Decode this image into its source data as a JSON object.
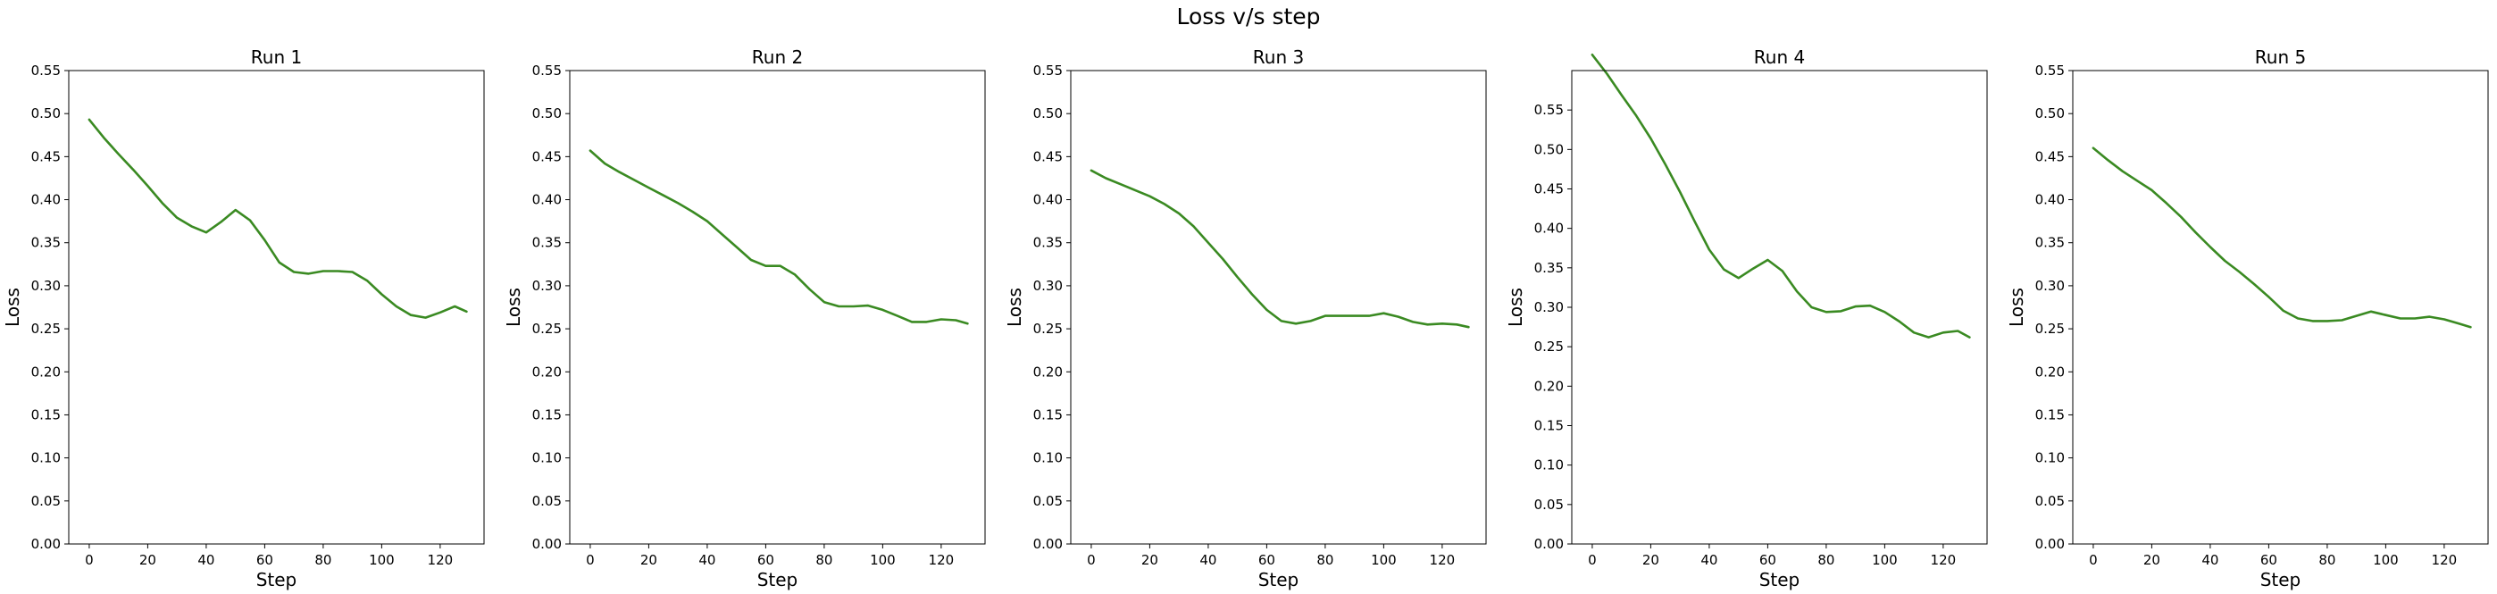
{
  "figure": {
    "title": "Loss v/s step",
    "line_color": "#3a8a22"
  },
  "chart_data": [
    {
      "type": "line",
      "title": "Run 1",
      "xlabel": "Step",
      "ylabel": "Loss",
      "xlim": [
        -7,
        135
      ],
      "ylim": [
        0.0,
        0.55
      ],
      "xticks": [
        0,
        20,
        40,
        60,
        80,
        100,
        120
      ],
      "yticks": [
        0.0,
        0.05,
        0.1,
        0.15,
        0.2,
        0.25,
        0.3,
        0.35,
        0.4,
        0.45,
        0.5,
        0.55
      ],
      "grid": false,
      "series": [
        {
          "x": [
            0,
            5,
            10,
            15,
            20,
            25,
            30,
            35,
            40,
            45,
            50,
            55,
            60,
            65,
            70,
            75,
            80,
            85,
            90,
            95,
            100,
            105,
            110,
            115,
            120,
            125,
            129
          ],
          "y": [
            0.493,
            0.472,
            0.453,
            0.435,
            0.416,
            0.396,
            0.379,
            0.369,
            0.362,
            0.374,
            0.388,
            0.376,
            0.353,
            0.327,
            0.316,
            0.314,
            0.317,
            0.317,
            0.316,
            0.306,
            0.29,
            0.276,
            0.266,
            0.263,
            0.269,
            0.276,
            0.27
          ]
        }
      ]
    },
    {
      "type": "line",
      "title": "Run 2",
      "xlabel": "Step",
      "ylabel": "Loss",
      "xlim": [
        -7,
        135
      ],
      "ylim": [
        0.0,
        0.55
      ],
      "xticks": [
        0,
        20,
        40,
        60,
        80,
        100,
        120
      ],
      "yticks": [
        0.0,
        0.05,
        0.1,
        0.15,
        0.2,
        0.25,
        0.3,
        0.35,
        0.4,
        0.45,
        0.5,
        0.55
      ],
      "grid": false,
      "series": [
        {
          "x": [
            0,
            5,
            10,
            15,
            20,
            25,
            30,
            35,
            40,
            45,
            50,
            55,
            60,
            65,
            70,
            75,
            80,
            85,
            90,
            95,
            100,
            105,
            110,
            115,
            120,
            125,
            129
          ],
          "y": [
            0.457,
            0.442,
            0.432,
            0.423,
            0.414,
            0.405,
            0.396,
            0.386,
            0.375,
            0.36,
            0.345,
            0.33,
            0.323,
            0.323,
            0.313,
            0.296,
            0.281,
            0.276,
            0.276,
            0.277,
            0.272,
            0.265,
            0.258,
            0.258,
            0.261,
            0.26,
            0.256
          ]
        }
      ]
    },
    {
      "type": "line",
      "title": "Run 3",
      "xlabel": "Step",
      "ylabel": "Loss",
      "xlim": [
        -7,
        135
      ],
      "ylim": [
        0.0,
        0.55
      ],
      "xticks": [
        0,
        20,
        40,
        60,
        80,
        100,
        120
      ],
      "yticks": [
        0.0,
        0.05,
        0.1,
        0.15,
        0.2,
        0.25,
        0.3,
        0.35,
        0.4,
        0.45,
        0.5,
        0.55
      ],
      "grid": false,
      "series": [
        {
          "x": [
            0,
            5,
            10,
            15,
            20,
            25,
            30,
            35,
            40,
            45,
            50,
            55,
            60,
            65,
            70,
            75,
            80,
            85,
            90,
            95,
            100,
            105,
            110,
            115,
            120,
            125,
            129
          ],
          "y": [
            0.434,
            0.425,
            0.418,
            0.411,
            0.404,
            0.395,
            0.384,
            0.369,
            0.35,
            0.331,
            0.31,
            0.29,
            0.272,
            0.259,
            0.256,
            0.259,
            0.265,
            0.265,
            0.265,
            0.265,
            0.268,
            0.264,
            0.258,
            0.255,
            0.256,
            0.255,
            0.252
          ]
        }
      ]
    },
    {
      "type": "line",
      "title": "Run 4",
      "xlabel": "Step",
      "ylabel": "Loss",
      "xlim": [
        -7,
        135
      ],
      "ylim": [
        0.0,
        0.6
      ],
      "xticks": [
        0,
        20,
        40,
        60,
        80,
        100,
        120
      ],
      "yticks": [
        0.0,
        0.05,
        0.1,
        0.15,
        0.2,
        0.25,
        0.3,
        0.35,
        0.4,
        0.45,
        0.5,
        0.55
      ],
      "grid": false,
      "series": [
        {
          "x": [
            0,
            5,
            10,
            15,
            20,
            25,
            30,
            35,
            40,
            45,
            50,
            55,
            60,
            65,
            70,
            75,
            80,
            85,
            90,
            95,
            100,
            105,
            110,
            115,
            120,
            125,
            129
          ],
          "y": [
            0.62,
            0.596,
            0.569,
            0.543,
            0.514,
            0.481,
            0.446,
            0.409,
            0.373,
            0.348,
            0.337,
            0.349,
            0.36,
            0.346,
            0.32,
            0.3,
            0.294,
            0.295,
            0.301,
            0.302,
            0.294,
            0.282,
            0.268,
            0.262,
            0.268,
            0.27,
            0.262
          ]
        }
      ]
    },
    {
      "type": "line",
      "title": "Run 5",
      "xlabel": "Step",
      "ylabel": "Loss",
      "xlim": [
        -7,
        135
      ],
      "ylim": [
        0.0,
        0.55
      ],
      "xticks": [
        0,
        20,
        40,
        60,
        80,
        100,
        120
      ],
      "yticks": [
        0.0,
        0.05,
        0.1,
        0.15,
        0.2,
        0.25,
        0.3,
        0.35,
        0.4,
        0.45,
        0.5,
        0.55
      ],
      "grid": false,
      "series": [
        {
          "x": [
            0,
            5,
            10,
            15,
            20,
            25,
            30,
            35,
            40,
            45,
            50,
            55,
            60,
            65,
            70,
            75,
            80,
            85,
            90,
            95,
            100,
            105,
            110,
            115,
            120,
            125,
            129
          ],
          "y": [
            0.46,
            0.446,
            0.433,
            0.422,
            0.411,
            0.396,
            0.38,
            0.362,
            0.345,
            0.329,
            0.316,
            0.302,
            0.287,
            0.271,
            0.262,
            0.259,
            0.259,
            0.26,
            0.265,
            0.27,
            0.266,
            0.262,
            0.262,
            0.264,
            0.261,
            0.256,
            0.252
          ]
        }
      ]
    }
  ]
}
